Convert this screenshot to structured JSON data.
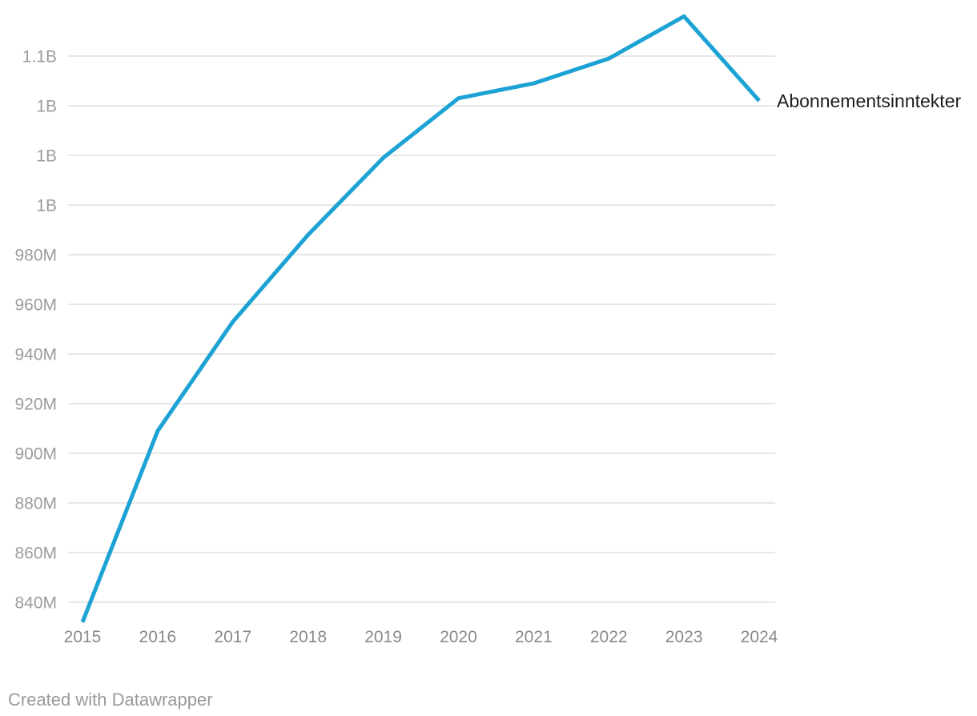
{
  "chart_data": {
    "type": "line",
    "x": [
      2015,
      2016,
      2017,
      2018,
      2019,
      2020,
      2021,
      2022,
      2023,
      2024
    ],
    "x_tick_labels": [
      "2015",
      "2016",
      "2017",
      "2018",
      "2019",
      "2020",
      "2021",
      "2022",
      "2023",
      "2024"
    ],
    "series": [
      {
        "name": "Abonnementsinntekter",
        "values_millions": [
          832,
          909,
          953,
          988,
          1019,
          1043,
          1049,
          1059,
          1076,
          1042
        ]
      }
    ],
    "y_ticks": [
      {
        "value": 840,
        "label": "840M"
      },
      {
        "value": 860,
        "label": "860M"
      },
      {
        "value": 880,
        "label": "880M"
      },
      {
        "value": 900,
        "label": "900M"
      },
      {
        "value": 920,
        "label": "920M"
      },
      {
        "value": 940,
        "label": "940M"
      },
      {
        "value": 960,
        "label": "960M"
      },
      {
        "value": 980,
        "label": "980M"
      },
      {
        "value": 1000,
        "label": "1B"
      },
      {
        "value": 1020,
        "label": "1B"
      },
      {
        "value": 1040,
        "label": "1B"
      },
      {
        "value": 1060,
        "label": "1.1B"
      }
    ],
    "ylim_millions": [
      830,
      1080
    ],
    "grid": true,
    "legend_position": "right-of-line-end",
    "title": "",
    "xlabel": "",
    "ylabel": ""
  },
  "footer": {
    "credit": "Created with Datawrapper"
  },
  "colors": {
    "line": "#1CA3D4",
    "grid": "#E7E7E7",
    "y_tick_text": "#9C9C9C",
    "x_tick_text": "#8A8A8A",
    "series_label_text": "#1D1D1D",
    "footer_text": "#9A9A9A",
    "background": "#FFFFFF"
  }
}
